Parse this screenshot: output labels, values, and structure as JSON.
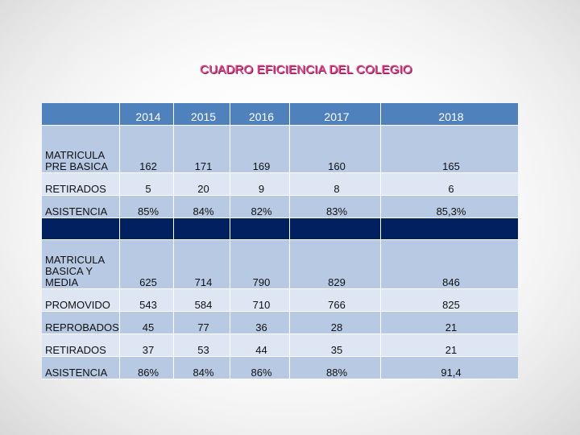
{
  "title": "CUADRO EFICIENCIA DEL COLEGIO",
  "colors": {
    "header_bg": "#4f81bd",
    "row_light": "#b8c9e3",
    "row_lighter": "#dde6f2",
    "separator": "#002060",
    "title": "#e8408a"
  },
  "table": {
    "header": [
      "",
      "2014",
      "2015",
      "2016",
      "2017",
      "2018"
    ],
    "section1": [
      {
        "label": "MATRICULA PRE BASICA",
        "values": [
          "162",
          "171",
          "169",
          "160",
          "165"
        ]
      },
      {
        "label": "RETIRADOS",
        "values": [
          "5",
          "20",
          "9",
          "8",
          "6"
        ]
      },
      {
        "label": "ASISTENCIA",
        "values": [
          "85%",
          "84%",
          "82%",
          "83%",
          "85,3%"
        ]
      }
    ],
    "section2": [
      {
        "label": "MATRICULA BASICA Y MEDIA",
        "values": [
          "625",
          "714",
          "790",
          "829",
          "846"
        ]
      },
      {
        "label": "PROMOVIDO",
        "values": [
          "543",
          "584",
          "710",
          "766",
          "825"
        ]
      },
      {
        "label": "REPROBADOS",
        "values": [
          "45",
          "77",
          "36",
          "28",
          "21"
        ]
      },
      {
        "label": "RETIRADOS",
        "values": [
          "37",
          "53",
          "44",
          "35",
          "21"
        ]
      },
      {
        "label": "ASISTENCIA",
        "values": [
          "86%",
          "84%",
          "86%",
          "88%",
          "91,4"
        ]
      }
    ]
  }
}
